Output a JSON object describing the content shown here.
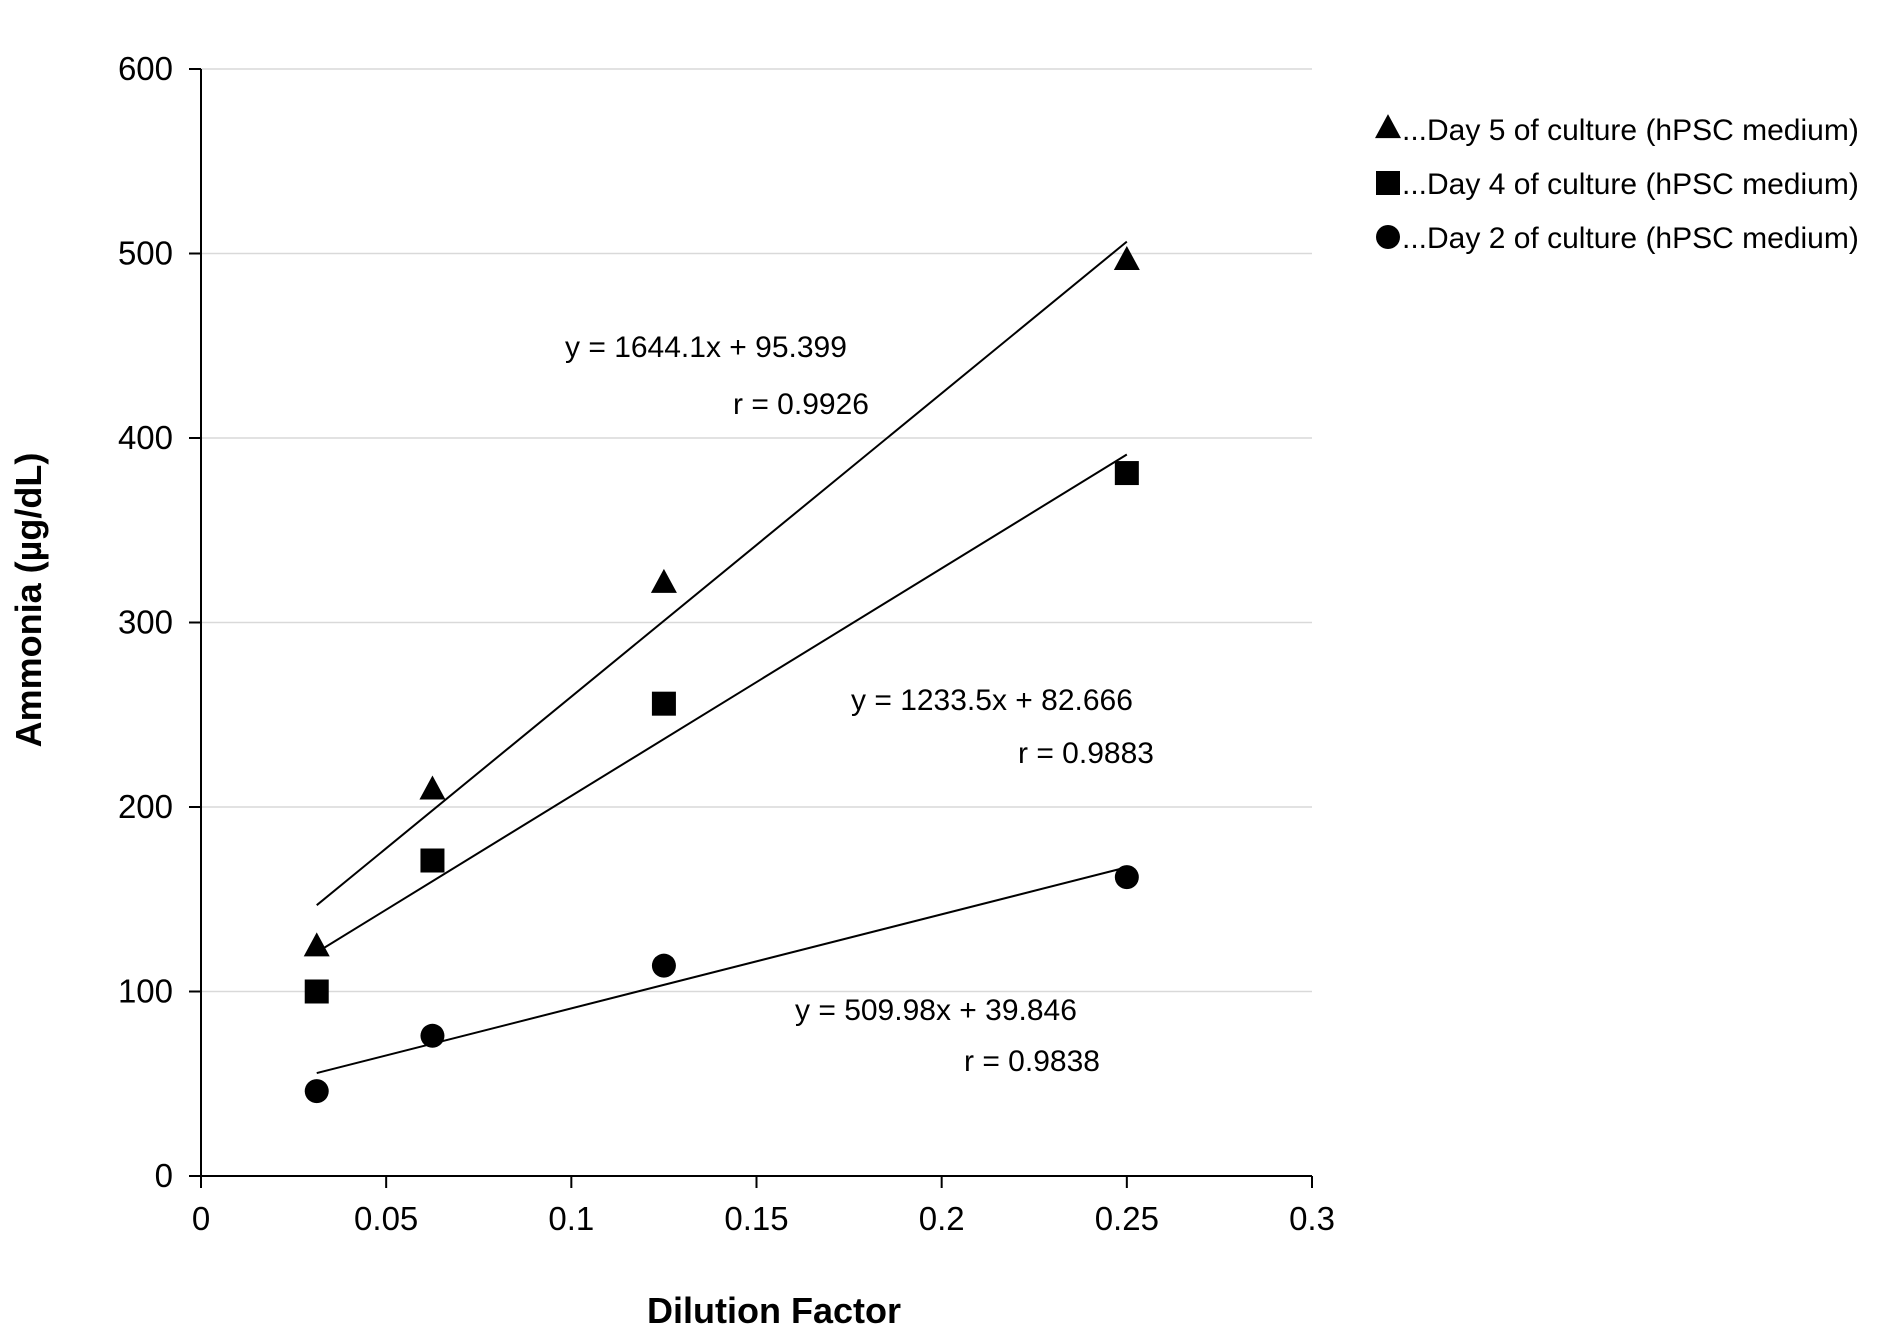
{
  "chart_data": {
    "type": "scatter",
    "title": "",
    "xlabel": "Dilution Factor",
    "ylabel": "Ammonia (µg/dL)",
    "xlim": [
      0,
      0.3
    ],
    "ylim": [
      0,
      600
    ],
    "x_ticks": [
      "0",
      "0.05",
      "0.1",
      "0.15",
      "0.2",
      "0.25",
      "0.3"
    ],
    "y_ticks": [
      "0",
      "100",
      "200",
      "300",
      "400",
      "500",
      "600"
    ],
    "grid": "horizontal",
    "legend_position": "top-right",
    "series": [
      {
        "name": "...Day 5 of culture (hPSC medium)",
        "marker": "triangle",
        "x": [
          0.03125,
          0.0625,
          0.125,
          0.25
        ],
        "y": [
          124,
          209,
          321,
          496
        ],
        "trend": {
          "slope": 1644.1,
          "intercept": 95.399
        },
        "equation": "y = 1644.1x + 95.399",
        "r_label": "r = 0.9926"
      },
      {
        "name": "...Day 4 of culture (hPSC medium)",
        "marker": "square",
        "x": [
          0.03125,
          0.0625,
          0.125,
          0.25
        ],
        "y": [
          100,
          171,
          256,
          381
        ],
        "trend": {
          "slope": 1233.5,
          "intercept": 82.666
        },
        "equation": "y = 1233.5x + 82.666",
        "r_label": "r = 0.9883"
      },
      {
        "name": "...Day 2 of culture (hPSC medium)",
        "marker": "circle",
        "x": [
          0.03125,
          0.0625,
          0.125,
          0.25
        ],
        "y": [
          46,
          76,
          114,
          162
        ],
        "trend": {
          "slope": 509.98,
          "intercept": 39.846
        },
        "equation": "y = 509.98x + 39.846",
        "r_label": "r = 0.9838"
      }
    ]
  }
}
